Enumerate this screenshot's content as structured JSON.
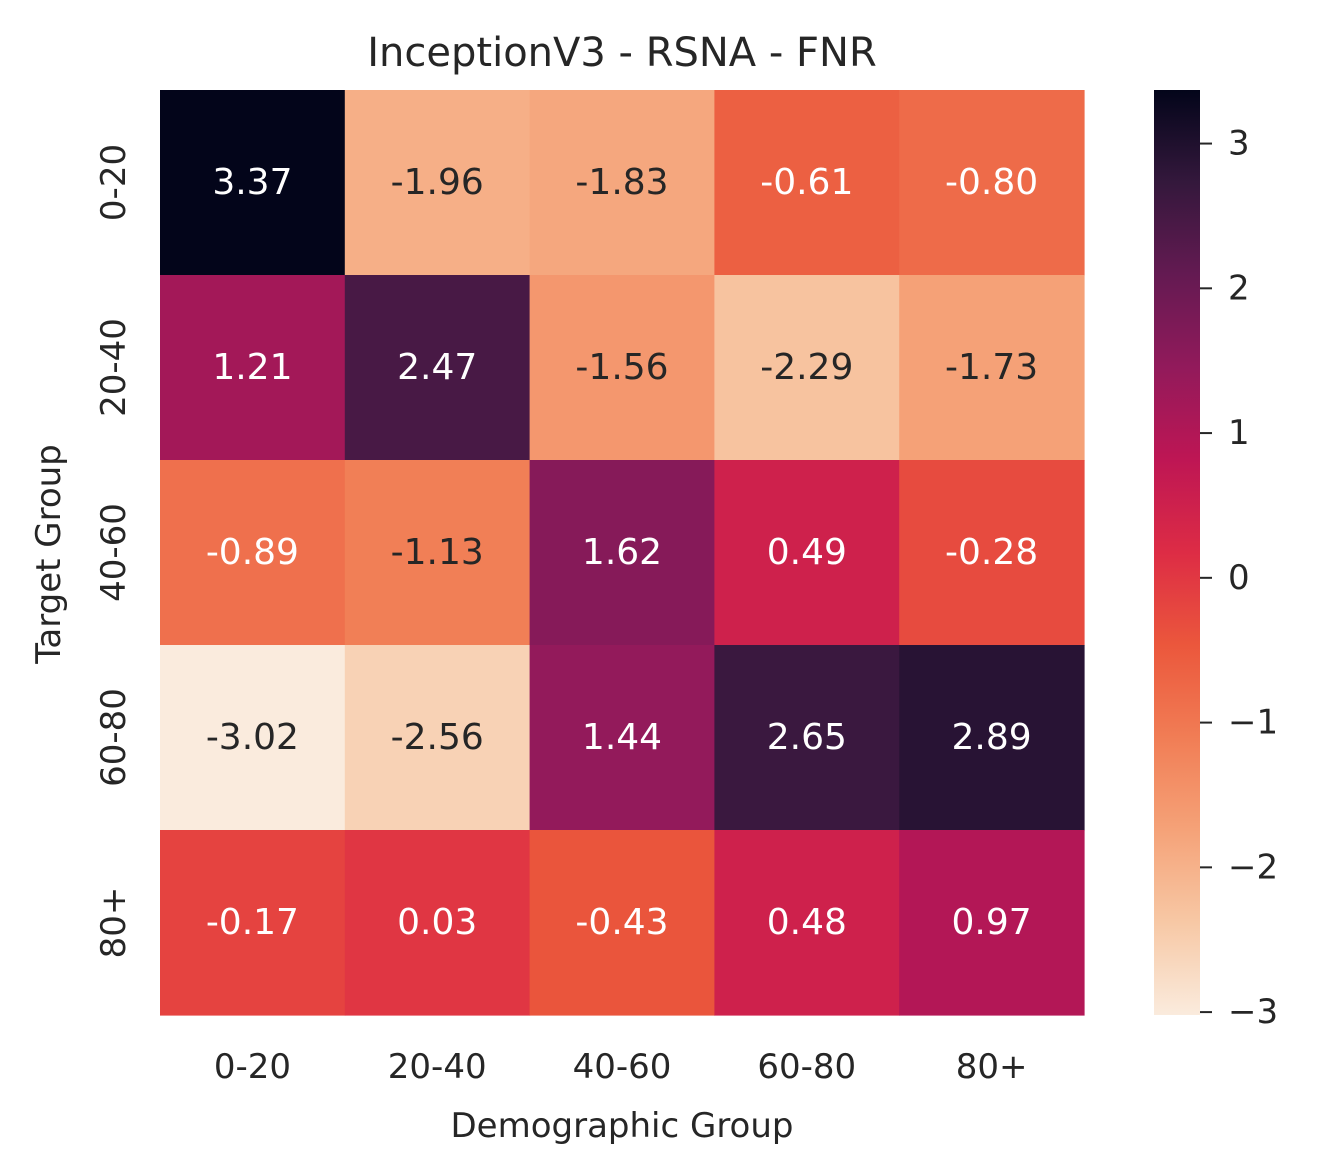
{
  "chart_data": {
    "type": "heatmap",
    "title": "InceptionV3 - RSNA - FNR",
    "xlabel": "Demographic Group",
    "ylabel": "Target Group",
    "x_categories": [
      "0-20",
      "20-40",
      "40-60",
      "60-80",
      "80+"
    ],
    "y_categories": [
      "0-20",
      "20-40",
      "40-60",
      "60-80",
      "80+"
    ],
    "values": [
      [
        3.37,
        -1.96,
        -1.83,
        -0.61,
        -0.8
      ],
      [
        1.21,
        2.47,
        -1.56,
        -2.29,
        -1.73
      ],
      [
        -0.89,
        -1.13,
        1.62,
        0.49,
        -0.28
      ],
      [
        -3.02,
        -2.56,
        1.44,
        2.65,
        2.89
      ],
      [
        -0.17,
        0.03,
        -0.43,
        0.48,
        0.97
      ]
    ],
    "value_labels": [
      [
        "3.37",
        "-1.96",
        "-1.83",
        "-0.61",
        "-0.80"
      ],
      [
        "1.21",
        "2.47",
        "-1.56",
        "-2.29",
        "-1.73"
      ],
      [
        "-0.89",
        "-1.13",
        "1.62",
        "0.49",
        "-0.28"
      ],
      [
        "-3.02",
        "-2.56",
        "1.44",
        "2.65",
        "2.89"
      ],
      [
        "-0.17",
        "0.03",
        "-0.43",
        "0.48",
        "0.97"
      ]
    ],
    "colorbar": {
      "vmin": -3.02,
      "vmax": 3.37,
      "ticks": [
        3,
        2,
        1,
        0,
        -1,
        -2,
        -3
      ],
      "tick_labels": [
        "3",
        "2",
        "1",
        "0",
        "−1",
        "−2",
        "−3"
      ]
    },
    "colormap": "rocket_r",
    "grid": false
  }
}
